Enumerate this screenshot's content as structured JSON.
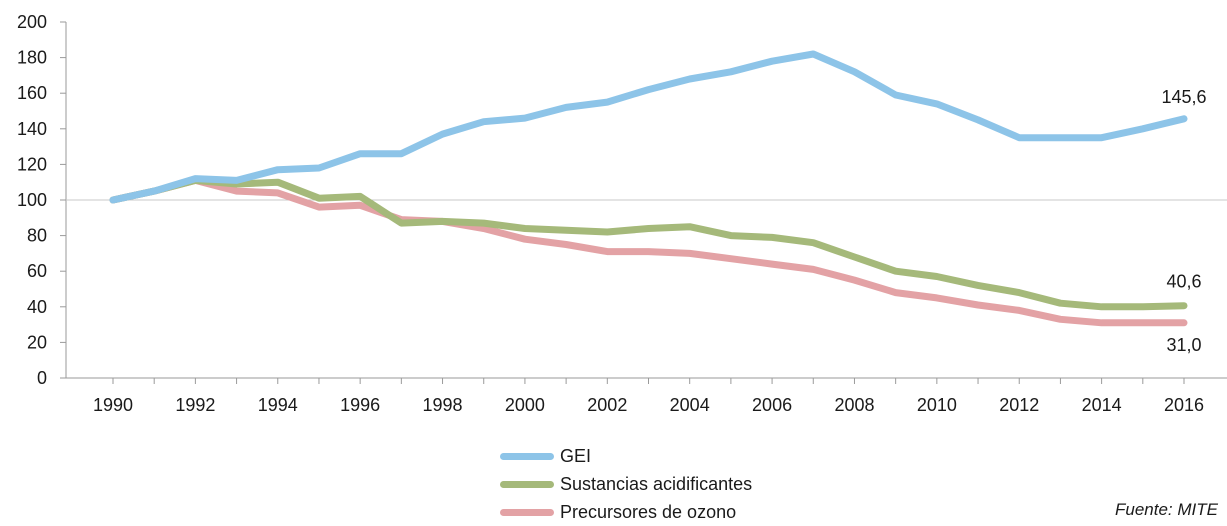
{
  "chart_data": {
    "type": "line",
    "x": [
      1990,
      1991,
      1992,
      1993,
      1994,
      1995,
      1996,
      1997,
      1998,
      1999,
      2000,
      2001,
      2002,
      2003,
      2004,
      2005,
      2006,
      2007,
      2008,
      2009,
      2010,
      2011,
      2012,
      2013,
      2014,
      2015,
      2016
    ],
    "x_tick_labels": [
      "1990",
      "1992",
      "1994",
      "1996",
      "1998",
      "2000",
      "2002",
      "2004",
      "2006",
      "2008",
      "2010",
      "2012",
      "2014",
      "2016"
    ],
    "y_tick_labels": [
      "0",
      "20",
      "40",
      "60",
      "80",
      "100",
      "120",
      "140",
      "160",
      "180",
      "200"
    ],
    "ylim": [
      0,
      200
    ],
    "reference_line": 100,
    "series": [
      {
        "name": "GEI",
        "color": "#8dc4e8",
        "values": [
          100,
          105,
          112,
          111,
          117,
          118,
          126,
          126,
          137,
          144,
          146,
          152,
          155,
          162,
          168,
          172,
          178,
          182,
          172,
          159,
          154,
          145,
          135,
          135,
          135,
          140,
          145.6
        ]
      },
      {
        "name": "Sustancias acidificantes",
        "color": "#a5b97a",
        "values": [
          100,
          105,
          111,
          109,
          110,
          101,
          102,
          87,
          88,
          87,
          84,
          83,
          82,
          84,
          85,
          80,
          79,
          76,
          68,
          60,
          57,
          52,
          48,
          42,
          40,
          40,
          40.6
        ]
      },
      {
        "name": "Precursores de ozono",
        "color": "#e3a2a5",
        "values": [
          100,
          105,
          111,
          105,
          104,
          96,
          97,
          89,
          88,
          84,
          78,
          75,
          71,
          71,
          70,
          67,
          64,
          61,
          55,
          48,
          45,
          41,
          38,
          33,
          31,
          31,
          31.0
        ]
      }
    ],
    "end_labels": [
      "145,6",
      "40,6",
      "31,0"
    ],
    "legend_position": "bottom"
  },
  "source_text": "Fuente: MITE"
}
